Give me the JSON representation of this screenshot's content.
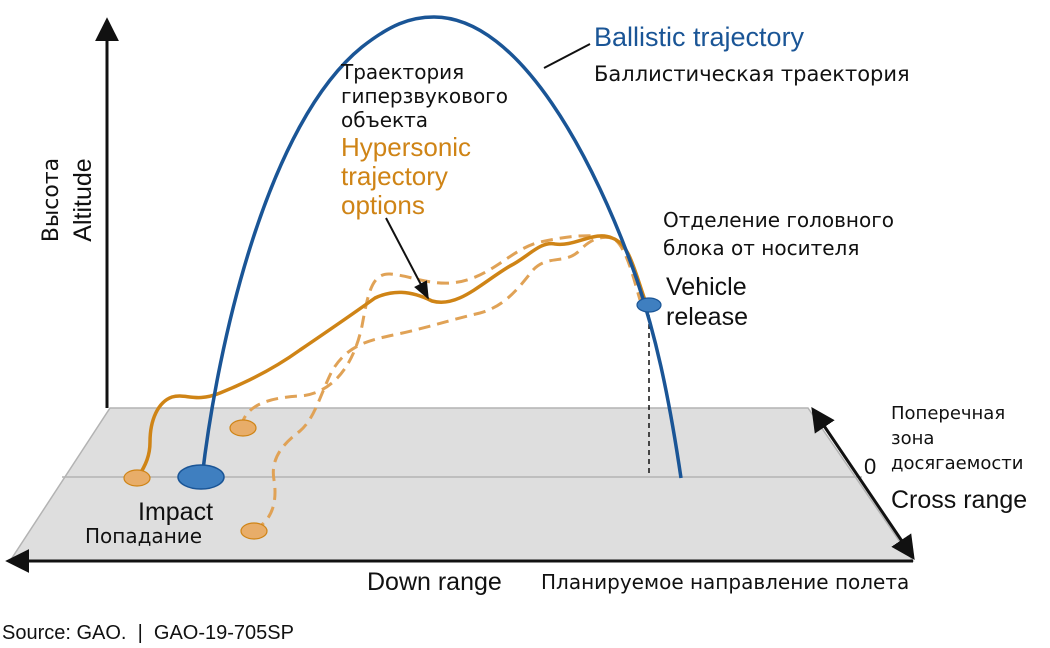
{
  "labels": {
    "altitude_ru": "Высота",
    "altitude_en": "Altitude",
    "ballistic_en": "Ballistic trajectory",
    "ballistic_ru": "Баллистическая траектория",
    "hypersonic_ru": [
      "Траектория",
      "гиперзвукового",
      "объекта"
    ],
    "hypersonic_en": [
      "Hypersonic",
      "trajectory",
      "options"
    ],
    "release_ru": [
      "Отделение головного",
      "блока от носителя"
    ],
    "release_en": [
      "Vehicle",
      "release"
    ],
    "cross_range_ru": [
      "Поперечная",
      "зона",
      "досягаемости"
    ],
    "zero": "0",
    "cross_range_en": "Cross range",
    "impact_en": "Impact",
    "impact_ru": "Попадание",
    "down_range_en": "Down range",
    "down_range_ru": "Планируемое направление полета",
    "source": "Source: GAO.  |  GAO-19-705SP"
  },
  "colors": {
    "ballistic": "#1a5596",
    "hypersonic": "#cf8416",
    "hypersonic_light": "#e0a256",
    "ground": "#dedede",
    "ground_stroke": "#b3b3b3",
    "axis": "#111111",
    "impact_marker": "#3f7fc0",
    "text": "#111111"
  }
}
